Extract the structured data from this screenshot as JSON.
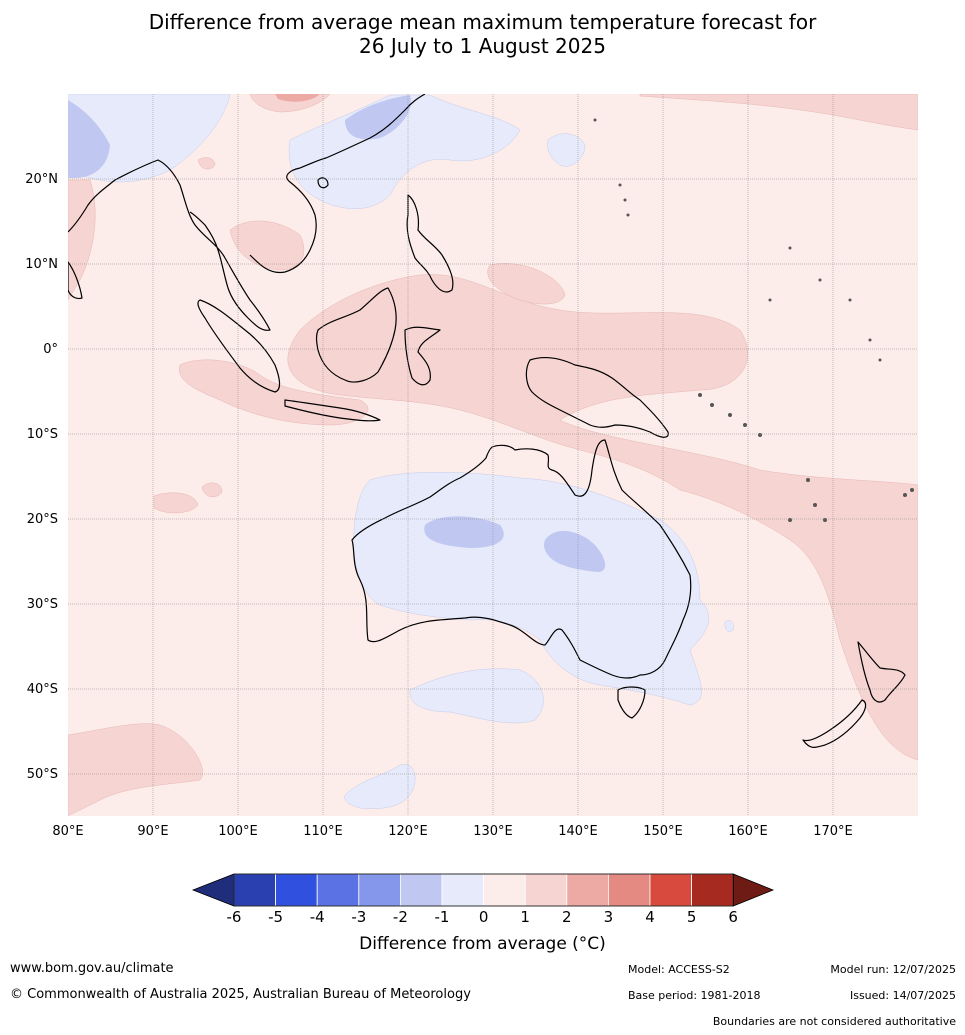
{
  "title": {
    "line1": "Difference from average mean maximum temperature forecast for",
    "line2": "26 July to 1 August 2025"
  },
  "map": {
    "lat_labels": [
      "20°N",
      "10°N",
      "0°",
      "10°S",
      "20°S",
      "30°S",
      "40°S",
      "50°S"
    ],
    "lon_labels": [
      "80°E",
      "90°E",
      "100°E",
      "110°E",
      "120°E",
      "130°E",
      "140°E",
      "150°E",
      "160°E",
      "170°E"
    ],
    "grid": true
  },
  "colorbar": {
    "ticks": [
      "-6",
      "-5",
      "-4",
      "-3",
      "-2",
      "-1",
      "0",
      "1",
      "2",
      "3",
      "4",
      "5",
      "6"
    ],
    "colors": [
      "#1f2d7a",
      "#2a3fb0",
      "#3050e0",
      "#5b72e4",
      "#8597ea",
      "#c0c8f2",
      "#e6eafa",
      "#fcecea",
      "#f5d4d2",
      "#edaaa5",
      "#e58a82",
      "#d94a3e",
      "#a72a20",
      "#6e1a15"
    ],
    "label": "Difference from average (°C)"
  },
  "footer": {
    "website": "www.bom.gov.au/climate",
    "copyright": "© Commonwealth of Australia 2025, Australian Bureau of Meteorology",
    "model": "Model: ACCESS-S2",
    "model_run": "Model run: 12/07/2025",
    "base_period": "Base period: 1981-2018",
    "issued": "Issued: 14/07/2025",
    "disclaimer": "Boundaries are not considered authoritative"
  }
}
